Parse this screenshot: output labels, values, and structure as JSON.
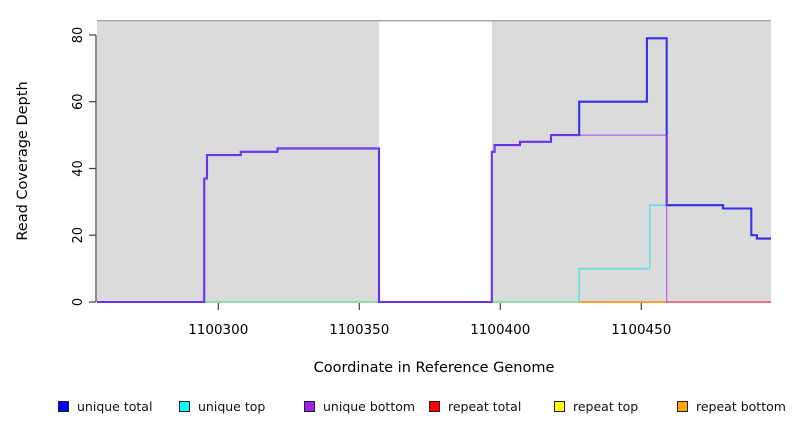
{
  "chart_data": {
    "type": "line",
    "title": "",
    "xlabel": "Coordinate in Reference Genome",
    "ylabel": "Read Coverage Depth",
    "xlim": [
      1100257,
      1100496
    ],
    "ylim": [
      0,
      84
    ],
    "grid": false,
    "legend_position": "bottom",
    "axes": {
      "x": {
        "ticks": [
          1100300,
          1100350,
          1100400,
          1100450
        ]
      },
      "y": {
        "ticks": [
          0,
          20,
          40,
          60,
          80
        ]
      }
    },
    "colors": {
      "plot_bg": "#DBDBDB",
      "plot_border": "#A6A6A6",
      "axis": "#404040",
      "band_fill": "#FFFFFF"
    },
    "background_band": {
      "x0": 1100357,
      "x1": 1100397,
      "color": "#FFFFFF",
      "note": "no-data white region"
    },
    "series": [
      {
        "name": "unique total",
        "color": "#3232E8",
        "width": 2.1,
        "opacity": 1,
        "render": true,
        "z": 3,
        "points": [
          [
            1100257,
            0
          ],
          [
            1100295,
            0
          ],
          [
            1100295,
            37
          ],
          [
            1100296,
            37
          ],
          [
            1100296,
            44
          ],
          [
            1100308,
            44
          ],
          [
            1100308,
            45
          ],
          [
            1100321,
            45
          ],
          [
            1100321,
            46
          ],
          [
            1100357,
            46
          ],
          [
            1100357,
            0
          ],
          [
            1100397,
            0
          ],
          [
            1100397,
            45
          ],
          [
            1100398,
            45
          ],
          [
            1100398,
            47
          ],
          [
            1100407,
            47
          ],
          [
            1100407,
            48
          ],
          [
            1100418,
            48
          ],
          [
            1100418,
            50
          ],
          [
            1100428,
            50
          ],
          [
            1100428,
            60
          ],
          [
            1100452,
            60
          ],
          [
            1100452,
            79
          ],
          [
            1100459,
            79
          ],
          [
            1100459,
            29
          ],
          [
            1100479,
            29
          ],
          [
            1100479,
            28
          ],
          [
            1100489,
            28
          ],
          [
            1100489,
            20
          ],
          [
            1100491,
            20
          ],
          [
            1100491,
            19
          ],
          [
            1100496,
            19
          ]
        ]
      },
      {
        "name": "unique top",
        "color": "#55E4E8",
        "width": 1.5,
        "opacity": 0.95,
        "render": true,
        "z": 1,
        "points": [
          [
            1100257,
            0
          ],
          [
            1100428,
            0
          ],
          [
            1100428,
            10
          ],
          [
            1100453,
            10
          ],
          [
            1100453,
            29
          ],
          [
            1100479,
            29
          ],
          [
            1100479,
            28
          ],
          [
            1100489,
            28
          ],
          [
            1100489,
            20
          ],
          [
            1100491,
            20
          ],
          [
            1100491,
            19
          ],
          [
            1100496,
            19
          ]
        ]
      },
      {
        "name": "unique bottom",
        "color": "#A835F0",
        "width": 1.2,
        "opacity": 0.75,
        "render": true,
        "z": 4,
        "points": [
          [
            1100257,
            0
          ],
          [
            1100295,
            0
          ],
          [
            1100295,
            37
          ],
          [
            1100296,
            37
          ],
          [
            1100296,
            44
          ],
          [
            1100308,
            44
          ],
          [
            1100308,
            45
          ],
          [
            1100321,
            45
          ],
          [
            1100321,
            46
          ],
          [
            1100357,
            46
          ],
          [
            1100357,
            0
          ],
          [
            1100397,
            0
          ],
          [
            1100397,
            45
          ],
          [
            1100398,
            45
          ],
          [
            1100398,
            47
          ],
          [
            1100407,
            47
          ],
          [
            1100407,
            48
          ],
          [
            1100418,
            48
          ],
          [
            1100418,
            50
          ],
          [
            1100459,
            50
          ],
          [
            1100459,
            0
          ]
        ]
      },
      {
        "name": "repeat total",
        "color": "#FF0000",
        "width": 1.5,
        "opacity": 1,
        "render": false,
        "z": 0,
        "points": [
          [
            1100257,
            0
          ],
          [
            1100496,
            0
          ]
        ]
      },
      {
        "name": "repeat top",
        "color": "#FFFF00",
        "width": 1.5,
        "opacity": 1,
        "render": false,
        "z": 0,
        "points": [
          [
            1100257,
            0
          ],
          [
            1100496,
            0
          ]
        ]
      },
      {
        "name": "repeat bottom",
        "color": "#FFA500",
        "width": 1.5,
        "opacity": 1,
        "render": false,
        "z": 0,
        "points": [
          [
            1100257,
            0
          ],
          [
            1100496,
            0
          ]
        ]
      }
    ],
    "zero_line_segments": [
      {
        "color": "#90D895",
        "width": 1.6,
        "x0": 1100295,
        "x1": 1100357
      },
      {
        "color": "#90D895",
        "width": 1.6,
        "x0": 1100397,
        "x1": 1100428
      },
      {
        "color": "#FFA03C",
        "width": 2.0,
        "x0": 1100428,
        "x1": 1100459
      },
      {
        "color": "#E0556F",
        "width": 1.6,
        "x0": 1100459,
        "x1": 1100496
      }
    ],
    "legend": [
      {
        "label": "unique total",
        "color": "#0000FF"
      },
      {
        "label": "unique top",
        "color": "#00FFFF"
      },
      {
        "label": "unique bottom",
        "color": "#A020F0"
      },
      {
        "label": "repeat total",
        "color": "#FF0000"
      },
      {
        "label": "repeat top",
        "color": "#FFFF00"
      },
      {
        "label": "repeat bottom",
        "color": "#FFA500"
      }
    ]
  }
}
